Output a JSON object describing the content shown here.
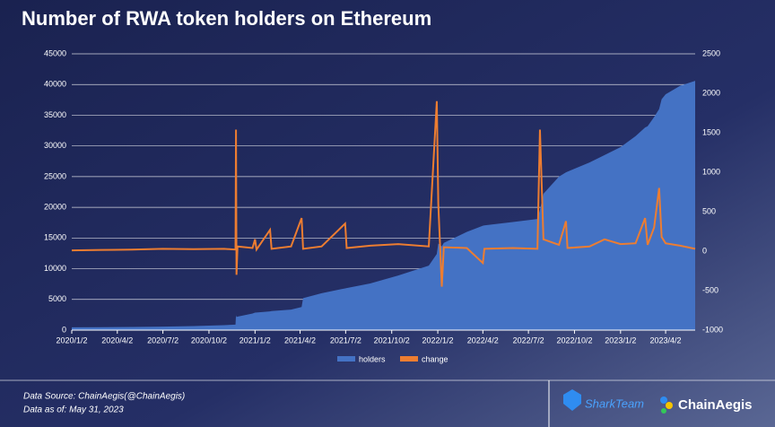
{
  "chart_data": {
    "type": "area-line",
    "title": "Number of RWA token holders on Ethereum",
    "x": [
      "2020/1/2",
      "2020/3/1",
      "2020/5/1",
      "2020/7/2",
      "2020/9/1",
      "2020/11/1",
      "2020/11/24",
      "2020/11/25",
      "2020/11/26",
      "2020/11/28",
      "2020/12/28",
      "2021/1/2",
      "2021/1/5",
      "2021/2/1",
      "2021/2/4",
      "2021/3/15",
      "2021/4/5",
      "2021/4/8",
      "2021/5/15",
      "2021/7/1",
      "2021/7/4",
      "2021/8/20",
      "2021/10/15",
      "2021/12/15",
      "2021/12/31",
      "2022/1/3",
      "2022/1/10",
      "2022/1/14",
      "2022/3/1",
      "2022/4/2",
      "2022/4/5",
      "2022/6/1",
      "2022/7/20",
      "2022/7/25",
      "2022/8/1",
      "2022/9/1",
      "2022/9/15",
      "2022/9/18",
      "2022/11/1",
      "2022/12/1",
      "2023/1/2",
      "2023/2/1",
      "2023/2/20",
      "2023/2/25",
      "2023/3/10",
      "2023/3/20",
      "2023/3/25",
      "2023/4/2",
      "2023/5/1",
      "2023/5/31"
    ],
    "series": [
      {
        "name": "holders",
        "color": "#4472c4",
        "kind": "area",
        "values": [
          450,
          480,
          520,
          560,
          650,
          800,
          900,
          2440,
          2140,
          2200,
          2700,
          2850,
          2870,
          3050,
          3100,
          3350,
          3770,
          5200,
          6000,
          6800,
          6850,
          7600,
          8900,
          10500,
          12400,
          14100,
          13650,
          14200,
          16000,
          17000,
          17050,
          17600,
          18100,
          19600,
          22200,
          25000,
          25700,
          25800,
          27300,
          28500,
          29800,
          31600,
          33000,
          33200,
          34700,
          36000,
          37600,
          38400,
          39800,
          40600
        ]
      },
      {
        "name": "change",
        "color": "#ed7d31",
        "kind": "line",
        "axis": "y2",
        "values": [
          10,
          15,
          20,
          30,
          25,
          30,
          20,
          1540,
          -300,
          60,
          40,
          150,
          20,
          270,
          30,
          60,
          420,
          30,
          60,
          350,
          40,
          70,
          90,
          60,
          1900,
          600,
          -450,
          50,
          40,
          -150,
          30,
          40,
          30,
          1540,
          150,
          80,
          380,
          40,
          60,
          150,
          90,
          100,
          420,
          80,
          300,
          800,
          180,
          100,
          70,
          30
        ]
      }
    ],
    "xlim": [
      "2020/1/2",
      "2023/5/31"
    ],
    "xticks": [
      "2020/1/2",
      "2020/4/2",
      "2020/7/2",
      "2020/10/2",
      "2021/1/2",
      "2021/4/2",
      "2021/7/2",
      "2021/10/2",
      "2022/1/2",
      "2022/4/2",
      "2022/7/2",
      "2022/10/2",
      "2023/1/2",
      "2023/4/2"
    ],
    "ylim": [
      0,
      45000
    ],
    "yticks": [
      0,
      5000,
      10000,
      15000,
      20000,
      25000,
      30000,
      35000,
      40000,
      45000
    ],
    "y2lim": [
      -1000,
      2500
    ],
    "y2ticks": [
      -1000,
      -500,
      0,
      500,
      1000,
      1500,
      2000,
      2500
    ],
    "grid": true,
    "legend": "bottom"
  },
  "footer": {
    "source": "Data Source: ChainAegis(@ChainAegis)",
    "date": "Data as of: May 31, 2023",
    "logo1": "SharkTeam",
    "logo2": "ChainAegis"
  }
}
